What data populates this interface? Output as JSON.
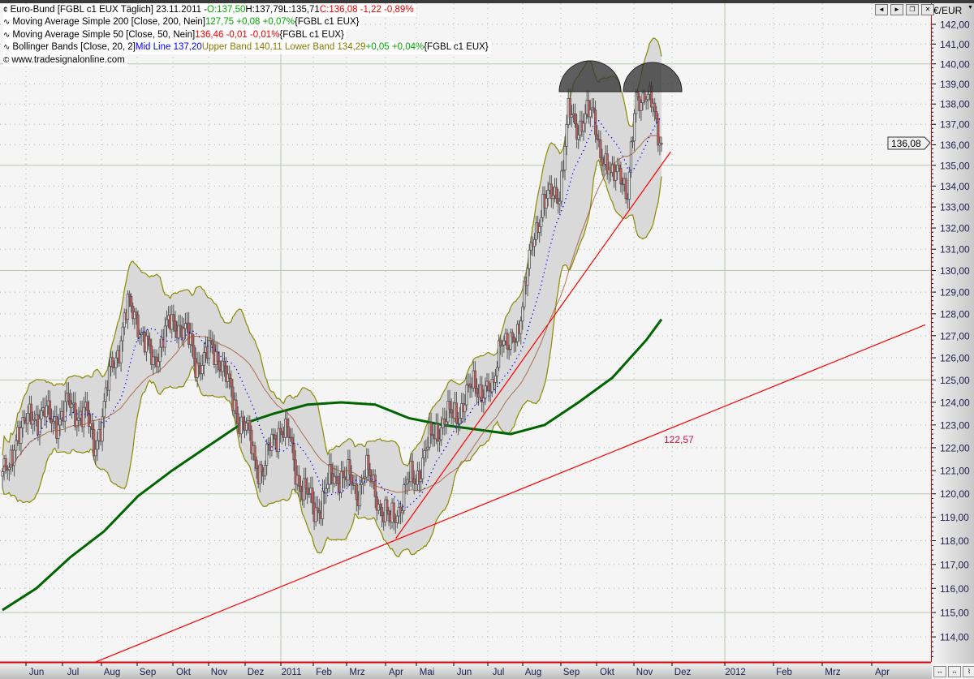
{
  "legend": {
    "main": {
      "icon": "candlestick-icon",
      "name": "Euro-Bund [FGBL c1 EUX  Täglich] 23.11.2011 -",
      "open": "O:137,50",
      "high": "H:137,79",
      "low": "L:135,71",
      "close": "C:136,08 -1,22 -0,89%"
    },
    "ma200": {
      "icon": "indicator-icon",
      "name": "Moving Average Simple 200 [Close, 200, Nein]",
      "value": "127,75 +0,08 +0,07%",
      "symbol": "{FGBL c1 EUX}"
    },
    "ma50": {
      "icon": "indicator-icon",
      "name": "Moving Average Simple 50 [Close, 50, Nein]",
      "value": "136,46 -0,01 -0,01%",
      "symbol": "{FGBL c1 EUX}"
    },
    "bb": {
      "icon": "indicator-icon",
      "name": "Bollinger Bands [Close, 20, 2]",
      "mid": "Mid Line 137,20",
      "bands": "Upper Band 140,11 Lower Band 134,29",
      "change": "+0,05 +0,04%",
      "symbol": "{FGBL c1 EUX}"
    },
    "source": {
      "icon": "copyright-icon",
      "text": "www.tradesignalonline.com"
    }
  },
  "axis": {
    "unit": "€/EUR",
    "last_price": "136,08"
  },
  "window_buttons": [
    "◄",
    "►",
    "❐",
    "✕"
  ],
  "bottom_buttons": [
    "↔",
    "↔",
    "⌇"
  ],
  "colors": {
    "up": "#e6e6e6",
    "down": "#d85a5a",
    "wick": "#555555",
    "band_fill": "#d9d9d9",
    "band_edge": "#8a8a00",
    "mid": "#0000ff",
    "ma50": "#a0522d",
    "ma200": "#006400",
    "trend": "#ff0000",
    "grid_major": "#b8c8b0"
  },
  "chart_data": {
    "type": "candlestick",
    "title": "Euro-Bund [FGBL c1 EUX  Täglich]",
    "y_scale": "log",
    "ylim": [
      113.2,
      142.4
    ],
    "grid": true,
    "yticks": [
      "142,00",
      "141,00",
      "140,00",
      "139,00",
      "138,00",
      "137,00",
      "136,00",
      "135,00",
      "134,00",
      "133,00",
      "132,00",
      "131,00",
      "130,00",
      "129,00",
      "128,00",
      "127,00",
      "126,00",
      "125,00",
      "124,00",
      "123,00",
      "122,00",
      "121,00",
      "120,00",
      "119,00",
      "118,00",
      "117,00",
      "116,00",
      "115,00",
      "114,00"
    ],
    "xticks": [
      "Jun",
      "Jul",
      "Aug",
      "Sep",
      "Okt",
      "Nov",
      "Dez",
      "2011",
      "Feb",
      "Mrz",
      "Apr",
      "Mai",
      "Jun",
      "Jul",
      "Aug",
      "Sep",
      "Okt",
      "Nov",
      "Dez",
      "2012",
      "Feb",
      "Mrz",
      "Apr"
    ],
    "dates": [
      "2010-05-28",
      "2010-06-04",
      "2010-06-11",
      "2010-06-18",
      "2010-06-25",
      "2010-07-02",
      "2010-07-09",
      "2010-07-16",
      "2010-07-23",
      "2010-07-30",
      "2010-08-06",
      "2010-08-13",
      "2010-08-20",
      "2010-08-27",
      "2010-09-03",
      "2010-09-10",
      "2010-09-17",
      "2010-09-24",
      "2010-10-01",
      "2010-10-08",
      "2010-10-15",
      "2010-10-22",
      "2010-10-29",
      "2010-11-05",
      "2010-11-12",
      "2010-11-19",
      "2010-11-26",
      "2010-12-03",
      "2010-12-10",
      "2010-12-17",
      "2010-12-24",
      "2010-12-31",
      "2011-01-07",
      "2011-01-14",
      "2011-01-21",
      "2011-01-28",
      "2011-02-04",
      "2011-02-11",
      "2011-02-18",
      "2011-02-25",
      "2011-03-04",
      "2011-03-11",
      "2011-03-18",
      "2011-03-25",
      "2011-04-01",
      "2011-04-08",
      "2011-04-15",
      "2011-04-22",
      "2011-04-29",
      "2011-05-06",
      "2011-05-13",
      "2011-05-20",
      "2011-05-27",
      "2011-06-03",
      "2011-06-10",
      "2011-06-17",
      "2011-06-24",
      "2011-07-01",
      "2011-07-08",
      "2011-07-15",
      "2011-07-22",
      "2011-07-29",
      "2011-08-05",
      "2011-08-12",
      "2011-08-19",
      "2011-08-26",
      "2011-09-02",
      "2011-09-09",
      "2011-09-16",
      "2011-09-23",
      "2011-09-30",
      "2011-10-07",
      "2011-10-14",
      "2011-10-21",
      "2011-10-28",
      "2011-11-04",
      "2011-11-11",
      "2011-11-18",
      "2011-11-23"
    ],
    "close": [
      121.0,
      120.8,
      123.0,
      123.0,
      123.4,
      123.6,
      123.1,
      123.4,
      123.8,
      123.6,
      123.5,
      122.1,
      123.3,
      125.5,
      126.6,
      128.3,
      128.0,
      126.6,
      125.8,
      126.8,
      127.5,
      127.6,
      127.0,
      125.8,
      125.9,
      126.4,
      125.9,
      124.5,
      123.5,
      122.8,
      121.5,
      121.0,
      122.2,
      123.0,
      122.4,
      120.8,
      120.0,
      119.3,
      119.8,
      120.6,
      120.9,
      120.6,
      120.1,
      121.0,
      120.3,
      119.4,
      118.7,
      119.5,
      120.4,
      120.7,
      121.7,
      122.5,
      123.1,
      123.3,
      123.6,
      124.2,
      124.9,
      124.5,
      124.3,
      127.2,
      126.2,
      127.3,
      129.5,
      131.6,
      133.3,
      133.4,
      133.8,
      137.5,
      136.8,
      137.5,
      137.3,
      135.5,
      134.2,
      135.2,
      133.2,
      138.5,
      138.4,
      137.8,
      136.08
    ],
    "ma200": [
      [
        "2010-05-28",
        115.1
      ],
      [
        "2010-06-25",
        116.0
      ],
      [
        "2010-07-23",
        117.3
      ],
      [
        "2010-08-20",
        118.4
      ],
      [
        "2010-09-17",
        119.9
      ],
      [
        "2010-10-15",
        121.0
      ],
      [
        "2010-11-12",
        122.0
      ],
      [
        "2010-12-10",
        123.0
      ],
      [
        "2011-01-07",
        123.5
      ],
      [
        "2011-02-04",
        123.9
      ],
      [
        "2011-03-04",
        124.0
      ],
      [
        "2011-04-01",
        123.9
      ],
      [
        "2011-04-29",
        123.3
      ],
      [
        "2011-05-27",
        123.0
      ],
      [
        "2011-06-24",
        122.8
      ],
      [
        "2011-07-22",
        122.6
      ],
      [
        "2011-08-19",
        123.0
      ],
      [
        "2011-09-16",
        124.0
      ],
      [
        "2011-10-14",
        125.1
      ],
      [
        "2011-11-11",
        126.8
      ],
      [
        "2011-11-23",
        127.75
      ]
    ],
    "trendlines": [
      {
        "from": [
          "2010-07-26",
          112.95
        ],
        "to": [
          "2012-05-04",
          127.5
        ],
        "label": "122,57"
      },
      {
        "from": [
          "2011-04-11",
          118.1
        ],
        "to": [
          "2011-11-30",
          135.66
        ]
      }
    ]
  }
}
